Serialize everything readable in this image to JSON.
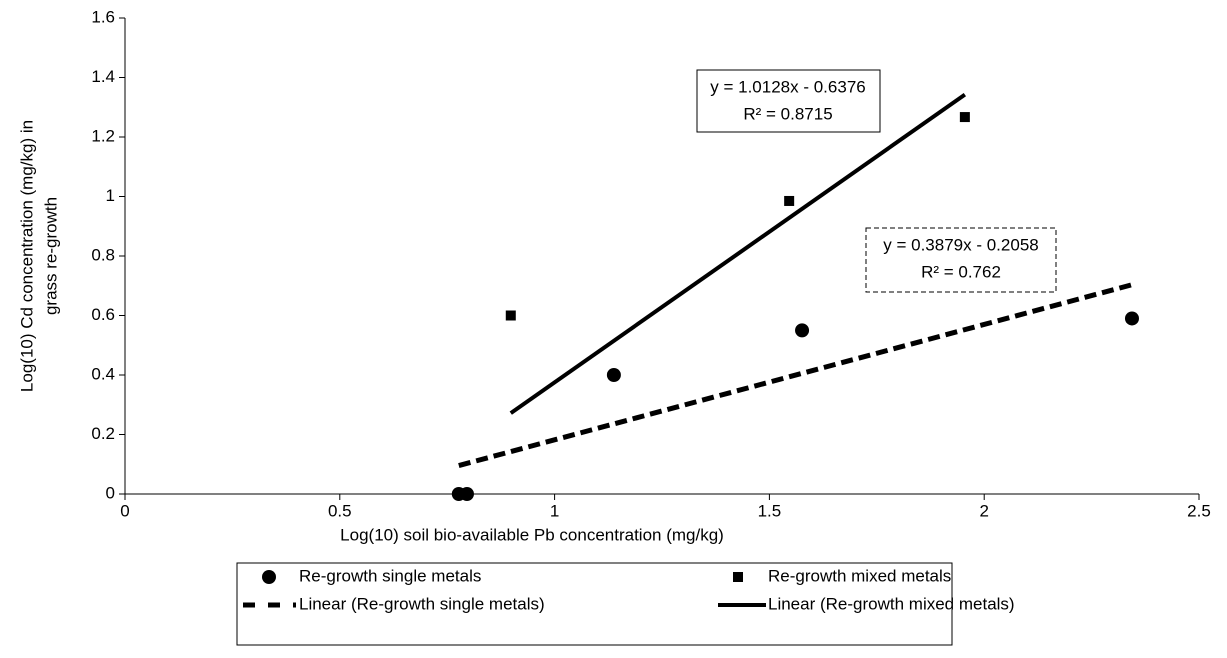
{
  "chart_data": {
    "type": "scatter",
    "xlabel": "Log(10) soil bio-available Pb concentration (mg/kg)",
    "ylabel": [
      "Log(10) Cd concentration (mg/kg) in",
      "grass re-growth"
    ],
    "xlim": [
      0,
      2.5
    ],
    "xticks": [
      0,
      0.5,
      1,
      1.5,
      2,
      2.5
    ],
    "ylim": [
      0,
      1.6
    ],
    "yticks": [
      0,
      0.2,
      0.4,
      0.6,
      0.8,
      1,
      1.2,
      1.4,
      1.6
    ],
    "grid": false,
    "series": [
      {
        "name": "Re-growth single metals",
        "marker": "circle",
        "color": "#000000",
        "x": [
          0.777,
          0.796,
          1.138,
          1.576,
          2.344
        ],
        "values": [
          0,
          0,
          0.4,
          0.55,
          0.59
        ]
      },
      {
        "name": "Re-growth mixed metals",
        "marker": "square",
        "color": "#000000",
        "x": [
          0.898,
          1.546,
          1.955
        ],
        "values": [
          0.6,
          0.985,
          1.267
        ]
      }
    ],
    "trendlines": [
      {
        "name": "Linear (Re-growth single metals)",
        "series": 0,
        "style": "dashed",
        "slope": 0.3879,
        "intercept": -0.2058,
        "equation": "y = 0.3879x - 0.2058",
        "r2": "R² = 0.762"
      },
      {
        "name": "Linear (Re-growth mixed metals)",
        "series": 1,
        "style": "solid",
        "slope": 1.0128,
        "intercept": -0.6376,
        "equation": "y = 1.0128x - 0.6376",
        "r2": "R² = 0.8715"
      }
    ]
  }
}
